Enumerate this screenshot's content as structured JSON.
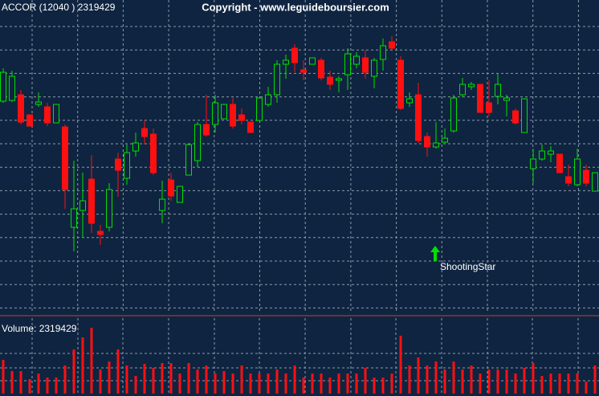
{
  "chart_data": {
    "type": "candlestick",
    "title": "ACCOR (12040 ) 2319429",
    "subtitle": "Copyright - www.leguideboursier.com",
    "volume_label": "Volume: 2319429",
    "annotation": "ShootingStar",
    "up_color": "#00e000",
    "down_color": "#ff1010",
    "volume_color": "#ff1010",
    "ylim": [
      0,
      390
    ],
    "volume_lim": [
      0,
      90
    ],
    "open": [
      264,
      265,
      272,
      247,
      260,
      257,
      237,
      232,
      107,
      128,
      167,
      102,
      107,
      192,
      168,
      202,
      230,
      223,
      128,
      166,
      138,
      172,
      190,
      235,
      235,
      242,
      260,
      247,
      238,
      240,
      260,
      272,
      310,
      330,
      303,
      310,
      315,
      294,
      290,
      297,
      310,
      318,
      295,
      316,
      338,
      315,
      262,
      272,
      220,
      207,
      213,
      227,
      272,
      282,
      285,
      262,
      270,
      265,
      252,
      225,
      180,
      192,
      198,
      198,
      170,
      160,
      178,
      152
    ],
    "high": [
      305,
      302,
      278,
      247,
      275,
      262,
      260,
      235,
      190,
      175,
      197,
      110,
      162,
      200,
      210,
      225,
      240,
      230,
      165,
      175,
      158,
      210,
      238,
      272,
      272,
      260,
      268,
      255,
      238,
      268,
      282,
      315,
      322,
      335,
      315,
      318,
      318,
      302,
      295,
      330,
      325,
      328,
      318,
      342,
      345,
      320,
      275,
      287,
      225,
      238,
      230,
      272,
      293,
      288,
      285,
      290,
      298,
      272,
      255,
      267,
      205,
      210,
      208,
      198,
      185,
      205,
      185,
      175
    ],
    "low": [
      262,
      263,
      235,
      233,
      257,
      233,
      237,
      130,
      77,
      95,
      100,
      85,
      102,
      145,
      160,
      195,
      210,
      172,
      112,
      140,
      138,
      172,
      182,
      220,
      225,
      242,
      230,
      235,
      225,
      240,
      257,
      262,
      292,
      300,
      290,
      310,
      290,
      278,
      275,
      278,
      305,
      292,
      280,
      302,
      328,
      253,
      257,
      212,
      195,
      205,
      212,
      225,
      269,
      278,
      250,
      245,
      260,
      245,
      235,
      225,
      162,
      190,
      188,
      175,
      158,
      158,
      158,
      152
    ],
    "close": [
      300,
      295,
      238,
      233,
      263,
      237,
      260,
      154,
      130,
      140,
      112,
      98,
      154,
      178,
      200,
      212,
      220,
      175,
      142,
      146,
      158,
      210,
      235,
      222,
      262,
      260,
      233,
      240,
      225,
      268,
      272,
      310,
      315,
      312,
      300,
      318,
      293,
      285,
      292,
      323,
      320,
      300,
      315,
      333,
      330,
      255,
      267,
      215,
      207,
      212,
      218,
      268,
      285,
      285,
      250,
      250,
      285,
      268,
      237,
      267,
      192,
      202,
      202,
      175,
      162,
      192,
      162,
      175
    ],
    "volume": [
      42,
      28,
      28,
      18,
      25,
      20,
      20,
      35,
      55,
      70,
      82,
      30,
      40,
      55,
      35,
      22,
      37,
      32,
      38,
      38,
      25,
      38,
      30,
      35,
      25,
      28,
      25,
      35,
      25,
      25,
      25,
      30,
      25,
      35,
      20,
      25,
      25,
      20,
      25,
      25,
      25,
      32,
      20,
      20,
      25,
      72,
      35,
      45,
      35,
      40,
      30,
      40,
      30,
      35,
      25,
      30,
      30,
      30,
      25,
      32,
      38,
      22,
      25,
      25,
      25,
      25,
      15,
      35
    ]
  }
}
